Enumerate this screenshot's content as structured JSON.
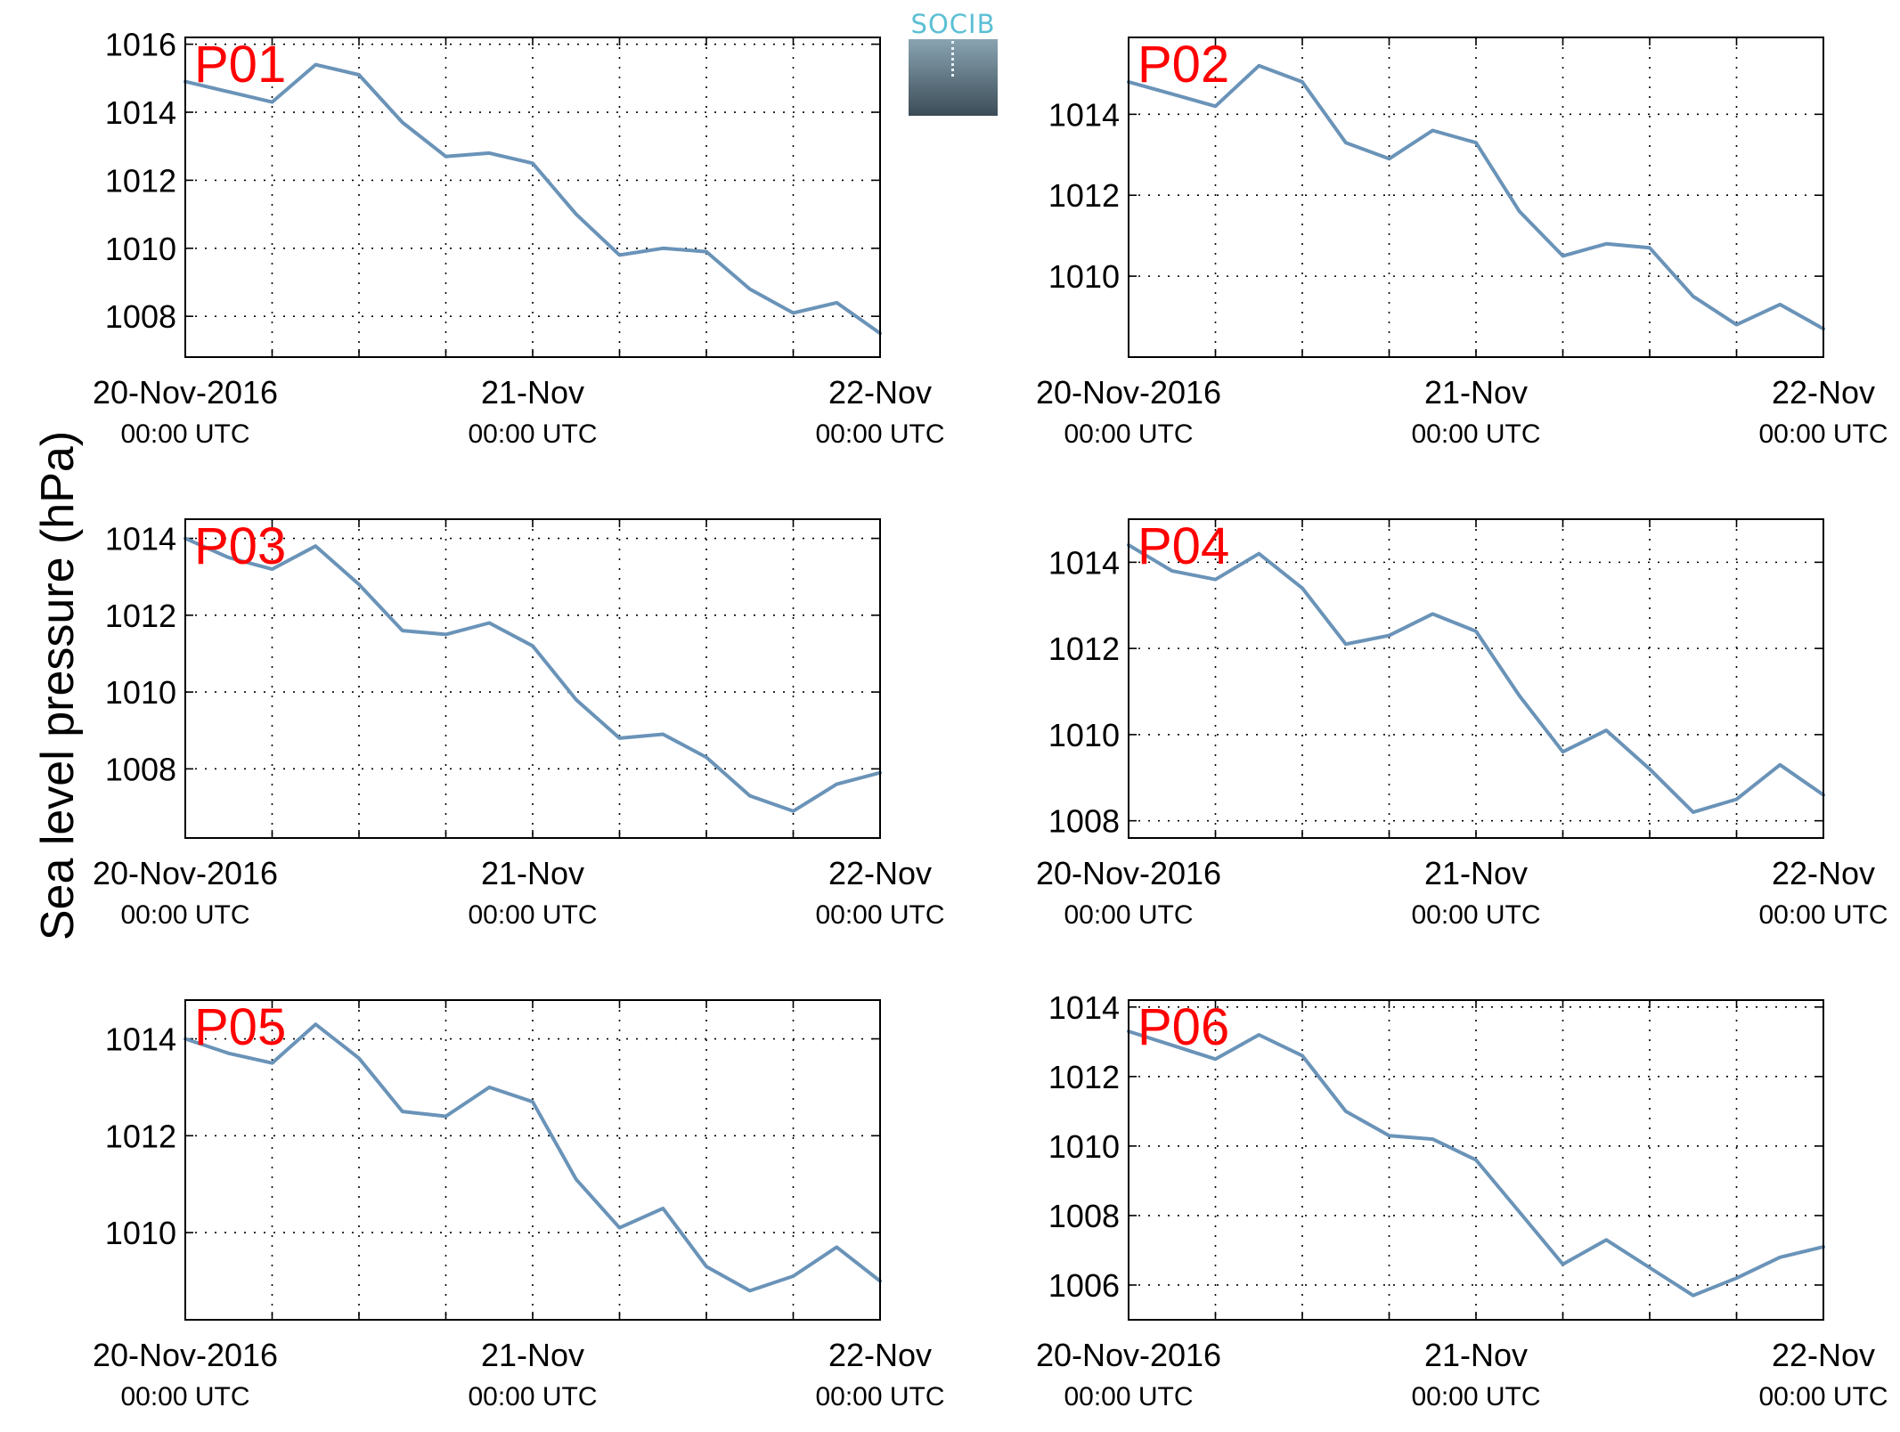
{
  "figure": {
    "ylabel": "Sea level pressure (hPa)",
    "logo_text": "SOCIB"
  },
  "colors": {
    "series": "#6a93b8",
    "station_label": "#ff0000",
    "grid": "#000000"
  },
  "x_ticks": [
    {
      "line1": "20-Nov-2016",
      "line2": "00:00 UTC"
    },
    {
      "line1": "21-Nov",
      "line2": "00:00 UTC"
    },
    {
      "line1": "22-Nov",
      "line2": "00:00 UTC"
    }
  ],
  "chart_data": [
    {
      "type": "line",
      "title": "P01",
      "xlabel": "",
      "ylabel": "Sea level pressure (hPa)",
      "xlim": [
        "2016-11-20 00:00",
        "2016-11-22 00:00"
      ],
      "ylim": [
        1006.8,
        1016.2
      ],
      "yticks": [
        1008,
        1010,
        1012,
        1014,
        1016
      ],
      "grid": true,
      "x": [
        "2016-11-20 00:00",
        "2016-11-20 03:00",
        "2016-11-20 06:00",
        "2016-11-20 09:00",
        "2016-11-20 12:00",
        "2016-11-20 15:00",
        "2016-11-20 18:00",
        "2016-11-20 21:00",
        "2016-11-21 00:00",
        "2016-11-21 03:00",
        "2016-11-21 06:00",
        "2016-11-21 09:00",
        "2016-11-21 12:00",
        "2016-11-21 15:00",
        "2016-11-21 18:00",
        "2016-11-21 21:00",
        "2016-11-22 00:00"
      ],
      "series": [
        {
          "values": [
            1014.9,
            1014.6,
            1014.3,
            1015.4,
            1015.1,
            1013.7,
            1012.7,
            1012.8,
            1012.5,
            1011.0,
            1009.8,
            1010.0,
            1009.9,
            1008.8,
            1008.1,
            1008.4,
            1007.5
          ]
        }
      ]
    },
    {
      "type": "line",
      "title": "P02",
      "xlabel": "",
      "ylabel": "Sea level pressure (hPa)",
      "xlim": [
        "2016-11-20 00:00",
        "2016-11-22 00:00"
      ],
      "ylim": [
        1008.0,
        1015.9
      ],
      "yticks": [
        1010,
        1012,
        1014
      ],
      "grid": true,
      "x": [
        "2016-11-20 00:00",
        "2016-11-20 03:00",
        "2016-11-20 06:00",
        "2016-11-20 09:00",
        "2016-11-20 12:00",
        "2016-11-20 15:00",
        "2016-11-20 18:00",
        "2016-11-20 21:00",
        "2016-11-21 00:00",
        "2016-11-21 03:00",
        "2016-11-21 06:00",
        "2016-11-21 09:00",
        "2016-11-21 12:00",
        "2016-11-21 15:00",
        "2016-11-21 18:00",
        "2016-11-21 21:00",
        "2016-11-22 00:00"
      ],
      "series": [
        {
          "values": [
            1014.8,
            1014.5,
            1014.2,
            1015.2,
            1014.8,
            1013.3,
            1012.9,
            1013.6,
            1013.3,
            1011.6,
            1010.5,
            1010.8,
            1010.7,
            1009.5,
            1008.8,
            1009.3,
            1008.7
          ]
        }
      ]
    },
    {
      "type": "line",
      "title": "P03",
      "xlabel": "",
      "ylabel": "Sea level pressure (hPa)",
      "xlim": [
        "2016-11-20 00:00",
        "2016-11-22 00:00"
      ],
      "ylim": [
        1006.2,
        1014.5
      ],
      "yticks": [
        1008,
        1010,
        1012,
        1014
      ],
      "grid": true,
      "x": [
        "2016-11-20 00:00",
        "2016-11-20 03:00",
        "2016-11-20 06:00",
        "2016-11-20 09:00",
        "2016-11-20 12:00",
        "2016-11-20 15:00",
        "2016-11-20 18:00",
        "2016-11-20 21:00",
        "2016-11-21 00:00",
        "2016-11-21 03:00",
        "2016-11-21 06:00",
        "2016-11-21 09:00",
        "2016-11-21 12:00",
        "2016-11-21 15:00",
        "2016-11-21 18:00",
        "2016-11-21 21:00",
        "2016-11-22 00:00"
      ],
      "series": [
        {
          "values": [
            1014.0,
            1013.5,
            1013.2,
            1013.8,
            1012.8,
            1011.6,
            1011.5,
            1011.8,
            1011.2,
            1009.8,
            1008.8,
            1008.9,
            1008.3,
            1007.3,
            1006.9,
            1007.6,
            1007.9
          ]
        }
      ]
    },
    {
      "type": "line",
      "title": "P04",
      "xlabel": "",
      "ylabel": "Sea level pressure (hPa)",
      "xlim": [
        "2016-11-20 00:00",
        "2016-11-22 00:00"
      ],
      "ylim": [
        1007.6,
        1015.0
      ],
      "yticks": [
        1008,
        1010,
        1012,
        1014
      ],
      "grid": true,
      "x": [
        "2016-11-20 00:00",
        "2016-11-20 03:00",
        "2016-11-20 06:00",
        "2016-11-20 09:00",
        "2016-11-20 12:00",
        "2016-11-20 15:00",
        "2016-11-20 18:00",
        "2016-11-20 21:00",
        "2016-11-21 00:00",
        "2016-11-21 03:00",
        "2016-11-21 06:00",
        "2016-11-21 09:00",
        "2016-11-21 12:00",
        "2016-11-21 15:00",
        "2016-11-21 18:00",
        "2016-11-21 21:00",
        "2016-11-22 00:00"
      ],
      "series": [
        {
          "values": [
            1014.4,
            1013.8,
            1013.6,
            1014.2,
            1013.4,
            1012.1,
            1012.3,
            1012.8,
            1012.4,
            1010.9,
            1009.6,
            1010.1,
            1009.2,
            1008.2,
            1008.5,
            1009.3,
            1008.6
          ]
        }
      ]
    },
    {
      "type": "line",
      "title": "P05",
      "xlabel": "",
      "ylabel": "Sea level pressure (hPa)",
      "xlim": [
        "2016-11-20 00:00",
        "2016-11-22 00:00"
      ],
      "ylim": [
        1008.2,
        1014.8
      ],
      "yticks": [
        1010,
        1012,
        1014
      ],
      "grid": true,
      "x": [
        "2016-11-20 00:00",
        "2016-11-20 03:00",
        "2016-11-20 06:00",
        "2016-11-20 09:00",
        "2016-11-20 12:00",
        "2016-11-20 15:00",
        "2016-11-20 18:00",
        "2016-11-20 21:00",
        "2016-11-21 00:00",
        "2016-11-21 03:00",
        "2016-11-21 06:00",
        "2016-11-21 09:00",
        "2016-11-21 12:00",
        "2016-11-21 15:00",
        "2016-11-21 18:00",
        "2016-11-21 21:00",
        "2016-11-22 00:00"
      ],
      "series": [
        {
          "values": [
            1014.0,
            1013.7,
            1013.5,
            1014.3,
            1013.6,
            1012.5,
            1012.4,
            1013.0,
            1012.7,
            1011.1,
            1010.1,
            1010.5,
            1009.3,
            1008.8,
            1009.1,
            1009.7,
            1009.0
          ]
        }
      ]
    },
    {
      "type": "line",
      "title": "P06",
      "xlabel": "",
      "ylabel": "Sea level pressure (hPa)",
      "xlim": [
        "2016-11-20 00:00",
        "2016-11-22 00:00"
      ],
      "ylim": [
        1005.0,
        1014.2
      ],
      "yticks": [
        1006,
        1008,
        1010,
        1012,
        1014
      ],
      "grid": true,
      "x": [
        "2016-11-20 00:00",
        "2016-11-20 03:00",
        "2016-11-20 06:00",
        "2016-11-20 09:00",
        "2016-11-20 12:00",
        "2016-11-20 15:00",
        "2016-11-20 18:00",
        "2016-11-20 21:00",
        "2016-11-21 00:00",
        "2016-11-21 03:00",
        "2016-11-21 06:00",
        "2016-11-21 09:00",
        "2016-11-21 12:00",
        "2016-11-21 15:00",
        "2016-11-21 18:00",
        "2016-11-21 21:00",
        "2016-11-22 00:00"
      ],
      "series": [
        {
          "values": [
            1013.3,
            1012.9,
            1012.5,
            1013.2,
            1012.6,
            1011.0,
            1010.3,
            1010.2,
            1009.6,
            1008.1,
            1006.6,
            1007.3,
            1006.5,
            1005.7,
            1006.2,
            1006.8,
            1007.1
          ]
        }
      ]
    }
  ]
}
